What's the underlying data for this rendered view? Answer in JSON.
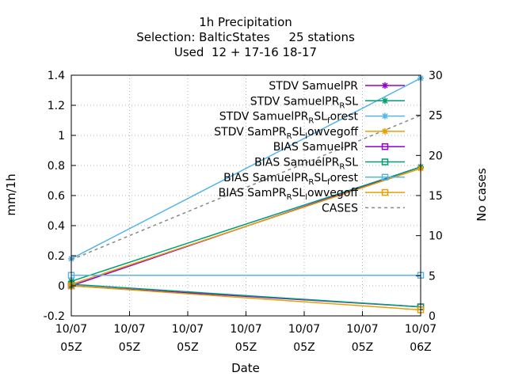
{
  "chart_data": {
    "type": "line",
    "title_lines": [
      "1h Precipitation",
      "Selection: BalticStates     25 stations",
      "Used  12 + 17-16 18-17"
    ],
    "xlabel": "Date",
    "ylabel": "mm/1h",
    "y2label": "No cases",
    "x": [
      0,
      1
    ],
    "xticks": [
      {
        "pos": 0,
        "line1": "10/07",
        "line2": "05Z"
      },
      {
        "pos": 0.1667,
        "line1": "10/07",
        "line2": "05Z"
      },
      {
        "pos": 0.3333,
        "line1": "10/07",
        "line2": "05Z"
      },
      {
        "pos": 0.5,
        "line1": "10/07",
        "line2": "05Z"
      },
      {
        "pos": 0.6667,
        "line1": "10/07",
        "line2": "05Z"
      },
      {
        "pos": 0.8333,
        "line1": "10/07",
        "line2": "05Z"
      },
      {
        "pos": 1,
        "line1": "10/07",
        "line2": "06Z"
      }
    ],
    "ylim": [
      -0.2,
      1.4
    ],
    "yticks": [
      -0.2,
      0,
      0.2,
      0.4,
      0.6,
      0.8,
      1,
      1.2,
      1.4
    ],
    "ytick_labels": [
      "-0.2",
      "0",
      "0.2",
      "0.4",
      "0.6",
      "0.8",
      "1",
      "1.2",
      "1.4"
    ],
    "y2lim": [
      0,
      30
    ],
    "y2ticks": [
      0,
      5,
      10,
      15,
      20,
      25,
      30
    ],
    "y2tick_labels": [
      "0",
      "5",
      "10",
      "15",
      "20",
      "25",
      "30"
    ],
    "grid": true,
    "legend_position": "top-right",
    "series": [
      {
        "name": "STDV SamuelPR",
        "color": "#9400d3",
        "marker": "star",
        "dash": false,
        "axis": "y",
        "x": [
          0,
          1
        ],
        "values": [
          0.0,
          0.79
        ]
      },
      {
        "name": "STDV SamuelPR_RSL",
        "color": "#009e73",
        "marker": "star",
        "dash": false,
        "axis": "y",
        "x": [
          0,
          1
        ],
        "values": [
          0.03,
          0.79
        ]
      },
      {
        "name": "STDV SamuelPR_RSL_forest",
        "color": "#56b4e9",
        "marker": "star",
        "dash": false,
        "axis": "y",
        "x": [
          0,
          1
        ],
        "values": [
          0.18,
          1.38
        ]
      },
      {
        "name": "STDV SamPR_RSL_lowvegoff",
        "color": "#e69f00",
        "marker": "star",
        "dash": false,
        "axis": "y",
        "x": [
          0,
          1
        ],
        "values": [
          0.01,
          0.78
        ]
      },
      {
        "name": "BIAS SamuelPR",
        "color": "#9400d3",
        "marker": "square",
        "dash": false,
        "axis": "y",
        "x": [
          0,
          1
        ],
        "values": [
          0.0,
          -0.14
        ]
      },
      {
        "name": "BIAS SamuelPR_RSL",
        "color": "#009e73",
        "marker": "square",
        "dash": false,
        "axis": "y",
        "x": [
          0,
          1
        ],
        "values": [
          0.01,
          -0.14
        ]
      },
      {
        "name": "BIAS SamuelPR_RSL_forest",
        "color": "#56b4e9",
        "marker": "square",
        "dash": false,
        "axis": "y",
        "x": [
          0,
          1
        ],
        "values": [
          0.07,
          0.07
        ]
      },
      {
        "name": "BIAS SamPR_RSL_lowvegoff",
        "color": "#e69f00",
        "marker": "square",
        "dash": false,
        "axis": "y",
        "x": [
          0,
          1
        ],
        "values": [
          0.0,
          -0.16
        ]
      },
      {
        "name": "CASES",
        "color": "#888888",
        "marker": "none",
        "dash": true,
        "axis": "y2",
        "x": [
          0,
          1
        ],
        "values": [
          7,
          25
        ]
      }
    ],
    "legend_entries": [
      {
        "base": "STDV SamuelPR",
        "sub": []
      },
      {
        "base": "STDV SamuelPR",
        "sub": [
          [
            "R",
            "sub"
          ],
          [
            "SL",
            "base"
          ]
        ]
      },
      {
        "base": "STDV SamuelPR",
        "sub": [
          [
            "R",
            "sub"
          ],
          [
            "SL",
            "base"
          ],
          [
            "f",
            "sub"
          ],
          [
            "orest",
            "base"
          ]
        ]
      },
      {
        "base": "STDV SamPR",
        "sub": [
          [
            "R",
            "sub"
          ],
          [
            "SL",
            "base"
          ],
          [
            "l",
            "sub"
          ],
          [
            "owvegoff",
            "base"
          ]
        ]
      },
      {
        "base": "BIAS SamuelPR",
        "sub": []
      },
      {
        "base": "BIAS SamuelPR",
        "sub": [
          [
            "R",
            "sub"
          ],
          [
            "SL",
            "base"
          ]
        ]
      },
      {
        "base": "BIAS SamuelPR",
        "sub": [
          [
            "R",
            "sub"
          ],
          [
            "SL",
            "base"
          ],
          [
            "f",
            "sub"
          ],
          [
            "orest",
            "base"
          ]
        ]
      },
      {
        "base": "BIAS SamPR",
        "sub": [
          [
            "R",
            "sub"
          ],
          [
            "SL",
            "base"
          ],
          [
            "l",
            "sub"
          ],
          [
            "owvegoff",
            "base"
          ]
        ]
      },
      {
        "base": "CASES",
        "sub": []
      }
    ]
  }
}
